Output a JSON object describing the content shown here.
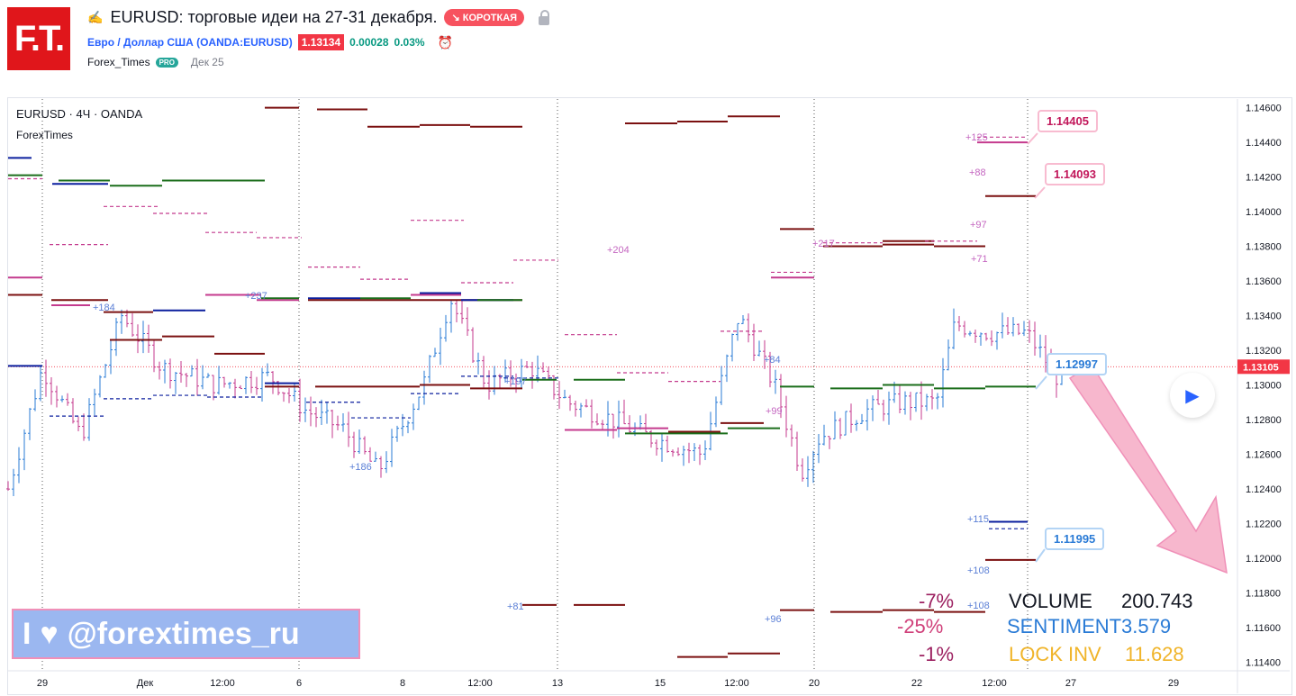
{
  "logo": {
    "text": "F.T."
  },
  "header": {
    "title": "EURUSD: торговые идеи на 27-31 декабря.",
    "badge": "↘ КОРОТКАЯ",
    "symbol_link": "Евро / Доллар США (OANDA:EURUSD)",
    "price": "1.13134",
    "change": "0.00028",
    "change_pct": "0.03%",
    "author": "Forex_Times",
    "author_badge": "PRO",
    "date": "Дек 25",
    "icons": [
      "pencil-icon",
      "lock-icon",
      "alarm-icon"
    ]
  },
  "chart": {
    "legend_title": "EURUSD · 4Ч · OANDA",
    "legend_sub": "ForexTimes",
    "banner": {
      "left": "I",
      "right": "@forextimes_ru"
    },
    "callouts": [
      "1.14405",
      "1.14093",
      "1.12997",
      "1.11995"
    ],
    "current_price": "1.13105",
    "y_ticks": [
      "1.14600",
      "1.14400",
      "1.14200",
      "1.14000",
      "1.13800",
      "1.13600",
      "1.13400",
      "1.13200",
      "1.13000",
      "1.12800",
      "1.12600",
      "1.12400",
      "1.12200",
      "1.12000",
      "1.11800",
      "1.11600",
      "1.11400"
    ],
    "x_ticks": [
      "29",
      "Дек",
      "12:00",
      "6",
      "8",
      "12:00",
      "13",
      "15",
      "12:00",
      "20",
      "22",
      "12:00",
      "27",
      "29"
    ],
    "level_labels": [
      "+125",
      "+88",
      "+97",
      "+71",
      "+204",
      "+217",
      "+184",
      "+237",
      "+84",
      "+99",
      "+186",
      "+197",
      "+115",
      "+108",
      "+108",
      "+81",
      "+96"
    ],
    "percents": [
      "-7%",
      "-25%",
      "-1%"
    ],
    "stats": [
      {
        "label": "VOLUME",
        "value": "200.743",
        "color": "#131722"
      },
      {
        "label": "SENTIMENT",
        "value": "3.579",
        "color": "#2a7bd6"
      },
      {
        "label": "LOCK INV",
        "value": "11.628",
        "color": "#f0b429"
      }
    ],
    "colors": {
      "up": "#2a7bd6",
      "down": "#c43a8e",
      "accent": "#f23645",
      "dark_red": "#7b1010",
      "green": "#1b6e1b",
      "navy": "#0b1f9e",
      "pink": "#c43a8e"
    }
  },
  "chart_data": {
    "type": "candlestick",
    "symbol": "EURUSD",
    "timeframe": "4Ч",
    "ylim": [
      1.1135,
      1.1465
    ],
    "x_range_labels": [
      "29",
      "Дек",
      "12:00",
      "6",
      "8",
      "12:00",
      "13",
      "15",
      "12:00",
      "20",
      "22",
      "12:00",
      "27",
      "29"
    ],
    "levels": [
      {
        "value": 1.14405,
        "label": "1.14405"
      },
      {
        "value": 1.14093,
        "label": "1.14093"
      },
      {
        "value": 1.12997,
        "label": "1.12997"
      },
      {
        "value": 1.11995,
        "label": "1.11995"
      }
    ],
    "last_price": 1.13105
  }
}
